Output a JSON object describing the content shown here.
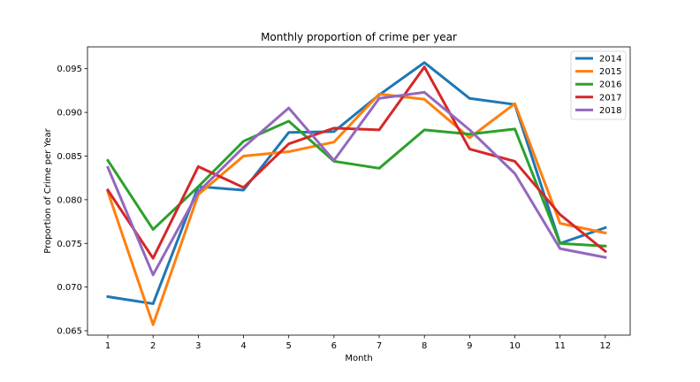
{
  "chart_data": {
    "type": "line",
    "title": "Monthly proportion of crime per year",
    "xlabel": "Month",
    "ylabel": "Proportion of Crime per Year",
    "x": [
      1,
      2,
      3,
      4,
      5,
      6,
      7,
      8,
      9,
      10,
      11,
      12
    ],
    "xlim": [
      0.55,
      12.55
    ],
    "ylim": [
      0.0645,
      0.0975
    ],
    "yticks": [
      0.065,
      0.07,
      0.075,
      0.08,
      0.085,
      0.09,
      0.095
    ],
    "ytick_labels": [
      "0.065",
      "0.070",
      "0.075",
      "0.080",
      "0.085",
      "0.090",
      "0.095"
    ],
    "xtick_labels": [
      "1",
      "2",
      "3",
      "4",
      "5",
      "6",
      "7",
      "8",
      "9",
      "10",
      "11",
      "12"
    ],
    "grid": false,
    "legend_position": "top-right",
    "series": [
      {
        "name": "2014",
        "color": "#1f77b4",
        "values": [
          0.0689,
          0.0681,
          0.0815,
          0.0811,
          0.0877,
          0.0878,
          0.092,
          0.0957,
          0.0916,
          0.0909,
          0.075,
          0.0768
        ]
      },
      {
        "name": "2015",
        "color": "#ff7f0e",
        "values": [
          0.0809,
          0.0657,
          0.0806,
          0.085,
          0.0855,
          0.0866,
          0.0921,
          0.0915,
          0.0871,
          0.091,
          0.0773,
          0.0762
        ]
      },
      {
        "name": "2016",
        "color": "#2ca02c",
        "values": [
          0.0845,
          0.0766,
          0.0815,
          0.0867,
          0.089,
          0.0844,
          0.0836,
          0.088,
          0.0875,
          0.0881,
          0.075,
          0.0747
        ]
      },
      {
        "name": "2017",
        "color": "#d62728",
        "values": [
          0.0811,
          0.0733,
          0.0838,
          0.0814,
          0.0864,
          0.0882,
          0.088,
          0.0952,
          0.0858,
          0.0844,
          0.0783,
          0.0741
        ]
      },
      {
        "name": "2018",
        "color": "#9467bd",
        "values": [
          0.0837,
          0.0714,
          0.0809,
          0.086,
          0.0905,
          0.0845,
          0.0916,
          0.0923,
          0.088,
          0.083,
          0.0744,
          0.0734
        ]
      }
    ]
  }
}
